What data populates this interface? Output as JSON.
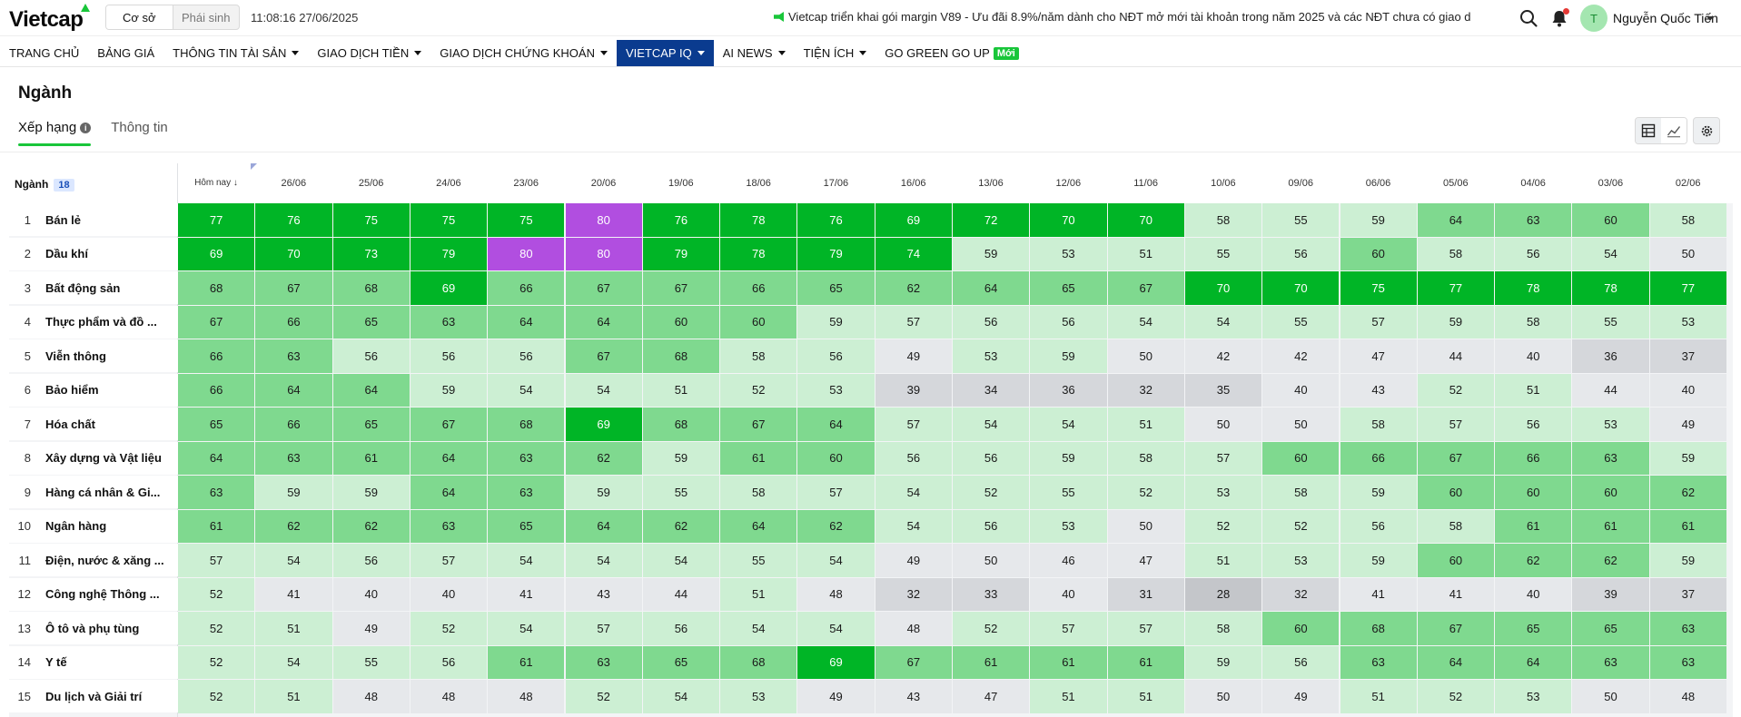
{
  "header": {
    "logo": "Vietcap",
    "modes": [
      "Cơ sở",
      "Phái sinh"
    ],
    "active_mode": "Cơ sở",
    "clock": "11:08:16 27/06/2025",
    "ticker": "Vietcap triển khai gói margin V89 - Ưu đãi 8.9%/năm dành cho NĐT mở mới tài khoản trong năm 2025 và các NĐT chưa có giao d",
    "avatar_initial": "T",
    "username": "Nguyễn Quốc Tiến"
  },
  "nav": [
    {
      "label": "TRANG CHỦ",
      "caret": false
    },
    {
      "label": "BẢNG GIÁ",
      "caret": false
    },
    {
      "label": "THÔNG TIN TÀI SẢN",
      "caret": true
    },
    {
      "label": "GIAO DỊCH TIỀN",
      "caret": true
    },
    {
      "label": "GIAO DỊCH CHỨNG KHOÁN",
      "caret": true
    },
    {
      "label": "VIETCAP IQ",
      "caret": true,
      "active": true
    },
    {
      "label": "AI NEWS",
      "caret": true
    },
    {
      "label": "TIỆN ÍCH",
      "caret": true
    },
    {
      "label": "GO GREEN GO UP",
      "caret": false,
      "badge": "Mới"
    }
  ],
  "page": {
    "title": "Ngành",
    "tabs": [
      "Xếp hạng",
      "Thông tin"
    ],
    "active_tab": "Xếp hạng",
    "info_icon": "i"
  },
  "table": {
    "sector_header": "Ngành",
    "sector_count": "18",
    "dates": [
      "Hôm nay ↓",
      "26/06",
      "25/06",
      "24/06",
      "23/06",
      "20/06",
      "19/06",
      "18/06",
      "17/06",
      "16/06",
      "13/06",
      "12/06",
      "11/06",
      "10/06",
      "09/06",
      "06/06",
      "05/06",
      "04/06",
      "03/06",
      "02/06"
    ],
    "rows": [
      {
        "rank": "1",
        "name": "Bán lẻ",
        "values": [
          77,
          76,
          75,
          75,
          75,
          80,
          76,
          78,
          76,
          69,
          72,
          70,
          70,
          58,
          55,
          59,
          64,
          63,
          60,
          58
        ]
      },
      {
        "rank": "2",
        "name": "Dầu khí",
        "values": [
          69,
          70,
          73,
          79,
          80,
          80,
          79,
          78,
          79,
          74,
          59,
          53,
          51,
          55,
          56,
          60,
          58,
          56,
          54,
          50
        ]
      },
      {
        "rank": "3",
        "name": "Bất động sản",
        "values": [
          68,
          67,
          68,
          69,
          66,
          67,
          67,
          66,
          65,
          62,
          64,
          65,
          67,
          70,
          70,
          75,
          77,
          78,
          78,
          77
        ]
      },
      {
        "rank": "4",
        "name": "Thực phẩm và đồ ...",
        "values": [
          67,
          66,
          65,
          63,
          64,
          64,
          60,
          60,
          59,
          57,
          56,
          56,
          54,
          54,
          55,
          57,
          59,
          58,
          55,
          53
        ]
      },
      {
        "rank": "5",
        "name": "Viễn thông",
        "values": [
          66,
          63,
          56,
          56,
          56,
          67,
          68,
          58,
          56,
          49,
          53,
          59,
          50,
          42,
          42,
          47,
          44,
          40,
          36,
          37
        ]
      },
      {
        "rank": "6",
        "name": "Bảo hiểm",
        "values": [
          66,
          64,
          64,
          59,
          54,
          54,
          51,
          52,
          53,
          39,
          34,
          36,
          32,
          35,
          40,
          43,
          52,
          51,
          44,
          40
        ]
      },
      {
        "rank": "7",
        "name": "Hóa chất",
        "values": [
          65,
          66,
          65,
          67,
          68,
          69,
          68,
          67,
          64,
          57,
          54,
          54,
          51,
          50,
          50,
          58,
          57,
          56,
          53,
          49
        ]
      },
      {
        "rank": "8",
        "name": "Xây dựng và Vật liệu",
        "values": [
          64,
          63,
          61,
          64,
          63,
          62,
          59,
          61,
          60,
          56,
          56,
          59,
          58,
          57,
          60,
          66,
          67,
          66,
          63,
          59
        ]
      },
      {
        "rank": "9",
        "name": "Hàng cá nhân & Gi...",
        "values": [
          63,
          59,
          59,
          64,
          63,
          59,
          55,
          58,
          57,
          54,
          52,
          55,
          52,
          53,
          58,
          59,
          60,
          60,
          60,
          62
        ]
      },
      {
        "rank": "10",
        "name": "Ngân hàng",
        "values": [
          61,
          62,
          62,
          63,
          65,
          64,
          62,
          64,
          62,
          54,
          56,
          53,
          50,
          52,
          52,
          56,
          58,
          61,
          61,
          61
        ]
      },
      {
        "rank": "11",
        "name": "Điện, nước & xăng ...",
        "values": [
          57,
          54,
          56,
          57,
          54,
          54,
          54,
          55,
          54,
          49,
          50,
          46,
          47,
          51,
          53,
          59,
          60,
          62,
          62,
          59
        ]
      },
      {
        "rank": "12",
        "name": "Công nghệ Thông ...",
        "values": [
          52,
          41,
          40,
          40,
          41,
          43,
          44,
          51,
          48,
          32,
          33,
          40,
          31,
          28,
          32,
          41,
          41,
          40,
          39,
          37
        ]
      },
      {
        "rank": "13",
        "name": "Ô tô và phụ tùng",
        "values": [
          52,
          51,
          49,
          52,
          54,
          57,
          56,
          54,
          54,
          48,
          52,
          57,
          57,
          58,
          60,
          68,
          67,
          65,
          65,
          63
        ]
      },
      {
        "rank": "14",
        "name": "Y tế",
        "values": [
          52,
          54,
          55,
          56,
          61,
          63,
          65,
          68,
          69,
          67,
          61,
          61,
          61,
          59,
          56,
          63,
          64,
          64,
          63,
          63
        ]
      },
      {
        "rank": "15",
        "name": "Du lịch và Giải trí",
        "values": [
          52,
          51,
          48,
          48,
          48,
          52,
          54,
          53,
          49,
          43,
          47,
          51,
          51,
          50,
          49,
          51,
          52,
          53,
          50,
          48
        ]
      }
    ]
  },
  "colors": {
    "top": "#00b526",
    "high": "#7fd98f",
    "mid": "#ccefd3",
    "neutral": "#e6e8eb",
    "low": "#d5d7db",
    "lowest": "#c4c6ca",
    "peak": "#b14ee0",
    "accent": "#19c63a",
    "nav_active": "#0a3b8f"
  },
  "icons": {
    "search": "search-icon",
    "bell": "bell-icon",
    "table_view": "table-icon",
    "chart_view": "line-chart-icon",
    "settings": "gear-icon"
  }
}
